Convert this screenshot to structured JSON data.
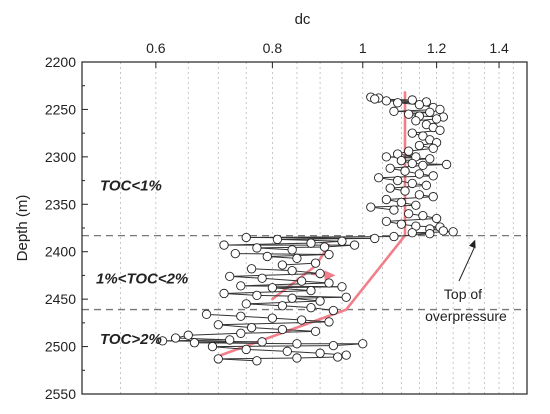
{
  "chart_data": {
    "type": "scatter",
    "title": "",
    "xlabel": "dc",
    "ylabel": "Depth (m)",
    "x_scale": "log",
    "x_axis_position": "top",
    "y_inverted": true,
    "xlim": [
      0.5,
      1.5
    ],
    "ylim": [
      2200,
      2550
    ],
    "xticks": [
      0.6,
      0.8,
      1,
      1.2,
      1.4
    ],
    "xtick_labels": [
      "0.6",
      "0.8",
      "1",
      "1.2",
      "1.4"
    ],
    "yticks": [
      2200,
      2250,
      2300,
      2350,
      2400,
      2450,
      2500,
      2550
    ],
    "ytick_labels": [
      "2200",
      "2250",
      "2300",
      "2350",
      "2400",
      "2450",
      "2500",
      "2550"
    ],
    "grid": {
      "vertical": true,
      "horizontal": false
    },
    "zones": [
      {
        "label": "TOC<1%",
        "depth_label_at": 2330
      },
      {
        "label": "1%<TOC<2%",
        "depth_label_at": 2428
      },
      {
        "label": "TOC>2%",
        "depth_label_at": 2492
      }
    ],
    "boundaries": [
      2383,
      2461
    ],
    "annotation": {
      "lines": [
        "Top of",
        "overpressure"
      ],
      "points_to_depth": 2383,
      "points_to_dc": 1.32
    },
    "trend_lines": [
      {
        "name": "normal-trend",
        "color": "#f07f8a",
        "points": [
          [
            1.11,
            2232
          ],
          [
            1.11,
            2383
          ]
        ]
      },
      {
        "name": "overpressure-trend",
        "color": "#f07f8a",
        "points": [
          [
            1.11,
            2383
          ],
          [
            0.96,
            2461
          ],
          [
            0.7,
            2510
          ]
        ]
      },
      {
        "name": "zone-trend",
        "color": "#f07f8a",
        "points": [
          [
            0.92,
            2393
          ],
          [
            0.89,
            2415
          ],
          [
            0.8,
            2450
          ]
        ]
      }
    ],
    "arrow": {
      "color": "#f07f8a",
      "from": [
        0.88,
        2423
      ],
      "to": [
        0.935,
        2425
      ]
    },
    "series": [
      {
        "values": [
          [
            1.02,
            2237
          ],
          [
            1.03,
            2239
          ],
          [
            1.04,
            2238
          ],
          [
            1.06,
            2241
          ],
          [
            1.09,
            2243
          ],
          [
            1.13,
            2240
          ],
          [
            1.15,
            2245
          ],
          [
            1.17,
            2242
          ],
          [
            1.19,
            2248
          ],
          [
            1.21,
            2250
          ],
          [
            1.08,
            2252
          ],
          [
            1.12,
            2255
          ],
          [
            1.15,
            2257
          ],
          [
            1.18,
            2253
          ],
          [
            1.2,
            2260
          ],
          [
            1.22,
            2258
          ],
          [
            1.14,
            2262
          ],
          [
            1.17,
            2266
          ],
          [
            1.19,
            2269
          ],
          [
            1.21,
            2272
          ],
          [
            1.13,
            2275
          ],
          [
            1.16,
            2278
          ],
          [
            1.18,
            2282
          ],
          [
            1.2,
            2285
          ],
          [
            1.15,
            2288
          ],
          [
            1.19,
            2291
          ],
          [
            1.12,
            2294
          ],
          [
            1.09,
            2297
          ],
          [
            1.14,
            2300
          ],
          [
            1.18,
            2302
          ],
          [
            1.06,
            2300
          ],
          [
            1.1,
            2304
          ],
          [
            1.13,
            2307
          ],
          [
            1.16,
            2309
          ],
          [
            1.23,
            2308
          ],
          [
            1.07,
            2312
          ],
          [
            1.11,
            2315
          ],
          [
            1.15,
            2318
          ],
          [
            1.19,
            2320
          ],
          [
            1.04,
            2322
          ],
          [
            1.09,
            2325
          ],
          [
            1.13,
            2328
          ],
          [
            1.17,
            2330
          ],
          [
            1.07,
            2333
          ],
          [
            1.11,
            2336
          ],
          [
            1.15,
            2340
          ],
          [
            1.19,
            2342
          ],
          [
            1.06,
            2345
          ],
          [
            1.1,
            2348
          ],
          [
            1.14,
            2351
          ],
          [
            1.02,
            2353
          ],
          [
            1.08,
            2356
          ],
          [
            1.12,
            2360
          ],
          [
            1.16,
            2362
          ],
          [
            1.2,
            2365
          ],
          [
            1.06,
            2368
          ],
          [
            1.1,
            2371
          ],
          [
            1.14,
            2373
          ],
          [
            1.18,
            2376
          ],
          [
            1.22,
            2378
          ],
          [
            1.25,
            2379
          ],
          [
            1.21,
            2374
          ],
          [
            1.18,
            2381
          ],
          [
            1.13,
            2380
          ],
          [
            0.75,
            2385
          ],
          [
            0.81,
            2387
          ],
          [
            0.88,
            2391
          ],
          [
            0.95,
            2389
          ],
          [
            1.03,
            2386
          ],
          [
            1.08,
            2384
          ],
          [
            0.71,
            2393
          ],
          [
            0.77,
            2396
          ],
          [
            0.84,
            2398
          ],
          [
            0.91,
            2395
          ],
          [
            0.98,
            2393
          ],
          [
            0.73,
            2402
          ],
          [
            0.79,
            2405
          ],
          [
            0.85,
            2407
          ],
          [
            0.92,
            2403
          ],
          [
            0.89,
            2412
          ],
          [
            0.82,
            2414
          ],
          [
            0.76,
            2418
          ],
          [
            0.84,
            2420
          ],
          [
            0.9,
            2423
          ],
          [
            0.72,
            2426
          ],
          [
            0.78,
            2428
          ],
          [
            0.86,
            2431
          ],
          [
            0.92,
            2433
          ],
          [
            0.74,
            2436
          ],
          [
            0.8,
            2438
          ],
          [
            0.88,
            2441
          ],
          [
            0.95,
            2437
          ],
          [
            0.71,
            2444
          ],
          [
            0.77,
            2446
          ],
          [
            0.84,
            2449
          ],
          [
            0.9,
            2452
          ],
          [
            0.96,
            2448
          ],
          [
            0.75,
            2455
          ],
          [
            0.82,
            2457
          ],
          [
            0.88,
            2459
          ],
          [
            0.93,
            2462
          ],
          [
            0.68,
            2466
          ],
          [
            0.74,
            2468
          ],
          [
            0.8,
            2470
          ],
          [
            0.86,
            2472
          ],
          [
            0.92,
            2474
          ],
          [
            0.7,
            2477
          ],
          [
            0.76,
            2480
          ],
          [
            0.82,
            2482
          ],
          [
            0.89,
            2484
          ],
          [
            0.65,
            2488
          ],
          [
            0.63,
            2491
          ],
          [
            0.72,
            2493
          ],
          [
            0.78,
            2495
          ],
          [
            0.85,
            2497
          ],
          [
            0.93,
            2499
          ],
          [
            1.0,
            2497
          ],
          [
            0.69,
            2500
          ],
          [
            0.75,
            2503
          ],
          [
            0.83,
            2505
          ],
          [
            0.9,
            2507
          ],
          [
            0.96,
            2509
          ],
          [
            0.94,
            2511
          ],
          [
            0.7,
            2513
          ],
          [
            0.77,
            2515
          ],
          [
            0.85,
            2512
          ],
          [
            0.66,
            2496
          ],
          [
            0.61,
            2494
          ],
          [
            0.74,
            2486
          ]
        ]
      }
    ]
  }
}
